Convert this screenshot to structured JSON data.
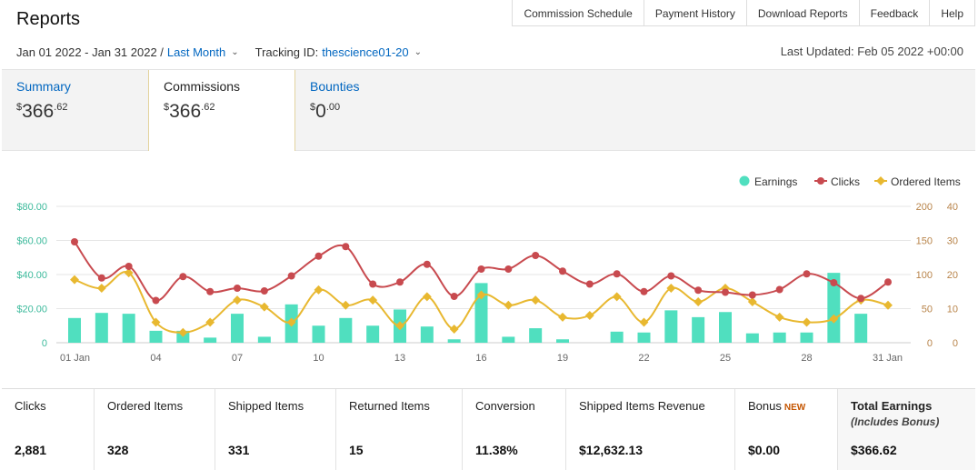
{
  "header": {
    "title": "Reports",
    "nav": [
      "Commission Schedule",
      "Payment History",
      "Download Reports",
      "Feedback",
      "Help"
    ]
  },
  "filters": {
    "date_range": "Jan 01 2022 - Jan 31 2022 /",
    "period": "Last Month",
    "tracking_label": "Tracking ID:",
    "tracking_id": "thescience01-20",
    "last_updated": "Last Updated: Feb 05 2022 +00:00"
  },
  "tabs": [
    {
      "label": "Summary",
      "currency": "$",
      "whole": "366",
      "cents": ".62"
    },
    {
      "label": "Commissions",
      "currency": "$",
      "whole": "366",
      "cents": ".62"
    },
    {
      "label": "Bounties",
      "currency": "$",
      "whole": "0",
      "cents": ".00"
    }
  ],
  "colors": {
    "earnings": "#50dfbf",
    "clicks": "#c84a4f",
    "ordered": "#e8b830",
    "link": "#0066c0"
  },
  "chart_data": {
    "type": "bar",
    "x": [
      1,
      2,
      3,
      4,
      5,
      6,
      7,
      8,
      9,
      10,
      11,
      12,
      13,
      14,
      15,
      16,
      17,
      18,
      19,
      20,
      21,
      22,
      23,
      24,
      25,
      26,
      27,
      28,
      29,
      30,
      31
    ],
    "x_ticks": [
      "01 Jan",
      "04",
      "07",
      "10",
      "13",
      "16",
      "19",
      "22",
      "25",
      "28",
      "31 Jan"
    ],
    "x_tick_days": [
      1,
      4,
      7,
      10,
      13,
      16,
      19,
      22,
      25,
      28,
      31
    ],
    "series": [
      {
        "name": "Earnings",
        "type": "bar",
        "axis": "left",
        "values": [
          14.5,
          17.5,
          17,
          7,
          7,
          3,
          17,
          3.5,
          22.5,
          10,
          14.5,
          10,
          19.5,
          9.5,
          2,
          35,
          3.5,
          8.5,
          2,
          0,
          6.5,
          6,
          19,
          15,
          18,
          5.5,
          6,
          6,
          41,
          17,
          0
        ]
      },
      {
        "name": "Clicks",
        "type": "line",
        "axis": "right1",
        "values": [
          148,
          95,
          112,
          62,
          97,
          75,
          80,
          76,
          98,
          127,
          141,
          86,
          89,
          115,
          68,
          108,
          108,
          128,
          105,
          86,
          101,
          75,
          98,
          77,
          74,
          70,
          78,
          101,
          88,
          65,
          89
        ]
      },
      {
        "name": "Ordered Items",
        "type": "line",
        "axis": "right2",
        "values": [
          18.5,
          16,
          20.5,
          6,
          3,
          6,
          12.5,
          10.5,
          6,
          15.5,
          11,
          12.5,
          5,
          13.5,
          4,
          14,
          11,
          12.5,
          7.5,
          8,
          13.5,
          6,
          16,
          12,
          16,
          12,
          7.5,
          6,
          7,
          12.5,
          11
        ]
      }
    ],
    "y_left": {
      "ticks": [
        "$80.00",
        "$60.00",
        "$40.00",
        "$20.00",
        "0"
      ],
      "ylim": [
        0,
        80
      ]
    },
    "y_right1": {
      "ticks": [
        "200",
        "150",
        "100",
        "50",
        "0"
      ],
      "ylim": [
        0,
        200
      ]
    },
    "y_right2": {
      "ticks": [
        "40",
        "30",
        "20",
        "10",
        "0"
      ],
      "ylim": [
        0,
        40
      ]
    },
    "legend_position": "top-right",
    "grid": true
  },
  "stats": [
    {
      "label": "Clicks",
      "value": "2,881"
    },
    {
      "label": "Ordered Items",
      "value": "328"
    },
    {
      "label": "Shipped Items",
      "value": "331"
    },
    {
      "label": "Returned Items",
      "value": "15"
    },
    {
      "label": "Conversion",
      "value": "11.38%"
    },
    {
      "label": "Shipped Items Revenue",
      "value": "$12,632.13"
    },
    {
      "label": "Bonus",
      "badge": "NEW",
      "value": "$0.00"
    },
    {
      "label": "Total Earnings",
      "sub": "(Includes Bonus)",
      "value": "$366.62"
    }
  ]
}
